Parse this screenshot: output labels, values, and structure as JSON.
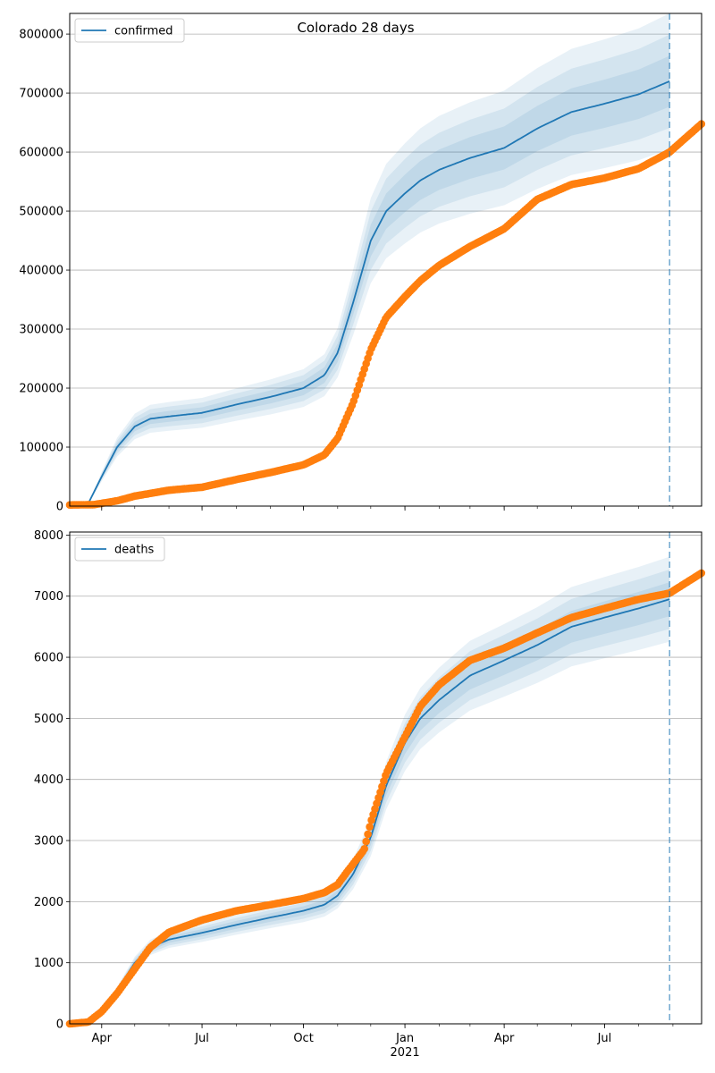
{
  "figure": {
    "title": "Colorado 28 days",
    "colors": {
      "model": "#1f77b4",
      "observed": "#ff7f0e",
      "band": "#1f77b4",
      "grid": "#b0b0b0"
    },
    "xaxis": {
      "ticks": [
        {
          "date": "2020-04-01",
          "label": "Apr"
        },
        {
          "date": "2020-07-01",
          "label": "Jul"
        },
        {
          "date": "2020-10-01",
          "label": "Oct"
        },
        {
          "date": "2021-01-01",
          "label": "Jan"
        },
        {
          "date": "2021-04-01",
          "label": "Apr"
        },
        {
          "date": "2021-07-01",
          "label": "Jul"
        }
      ],
      "year_label": "2021",
      "range": [
        "2020-03-03",
        "2021-09-27"
      ],
      "forecast_line_date": "2021-08-29"
    }
  },
  "chart_data": [
    {
      "type": "line",
      "legend": "confirmed",
      "legend_placement": "top-left",
      "grid": "horizontal",
      "ylim": [
        0,
        835000
      ],
      "yticks": [
        0,
        100000,
        200000,
        300000,
        400000,
        500000,
        600000,
        700000,
        800000
      ],
      "model_series": {
        "name": "confirmed",
        "x": [
          "2020-03-12",
          "2020-03-20",
          "2020-04-01",
          "2020-04-15",
          "2020-05-01",
          "2020-05-15",
          "2020-06-01",
          "2020-07-01",
          "2020-08-01",
          "2020-09-01",
          "2020-10-01",
          "2020-10-20",
          "2020-11-01",
          "2020-11-15",
          "2020-12-01",
          "2020-12-15",
          "2021-01-01",
          "2021-01-15",
          "2021-02-01",
          "2021-03-01",
          "2021-04-01",
          "2021-05-01",
          "2021-06-01",
          "2021-07-01",
          "2021-08-01",
          "2021-08-29"
        ],
        "y": [
          0,
          5000,
          50000,
          100000,
          135000,
          148000,
          152000,
          158000,
          172000,
          185000,
          200000,
          222000,
          260000,
          345000,
          450000,
          500000,
          530000,
          552000,
          570000,
          590000,
          607000,
          640000,
          668000,
          682000,
          698000,
          720000
        ],
        "band_fractions": [
          0.06,
          0.11,
          0.16
        ]
      },
      "observed": {
        "x": [
          "2020-03-03",
          "2020-03-25",
          "2020-04-15",
          "2020-05-01",
          "2020-06-01",
          "2020-07-01",
          "2020-08-01",
          "2020-09-01",
          "2020-10-01",
          "2020-10-20",
          "2020-11-01",
          "2020-11-15",
          "2020-12-01",
          "2020-12-15",
          "2021-01-01",
          "2021-01-15",
          "2021-02-01",
          "2021-03-01",
          "2021-04-01",
          "2021-05-01",
          "2021-06-01",
          "2021-07-01",
          "2021-08-01",
          "2021-08-29",
          "2021-09-27"
        ],
        "y": [
          2000,
          2500,
          9000,
          17000,
          27000,
          32000,
          45000,
          57000,
          70000,
          87000,
          115000,
          175000,
          265000,
          320000,
          355000,
          382000,
          408000,
          440000,
          470000,
          520000,
          545000,
          556000,
          572000,
          600000,
          648000
        ]
      }
    },
    {
      "type": "line",
      "legend": "deaths",
      "legend_placement": "top-left",
      "grid": "horizontal",
      "ylim": [
        0,
        8050
      ],
      "yticks": [
        0,
        1000,
        2000,
        3000,
        4000,
        5000,
        6000,
        7000,
        8000
      ],
      "model_series": {
        "name": "deaths",
        "x": [
          "2020-03-03",
          "2020-03-20",
          "2020-04-01",
          "2020-04-15",
          "2020-05-01",
          "2020-05-15",
          "2020-06-01",
          "2020-07-01",
          "2020-08-01",
          "2020-09-01",
          "2020-10-01",
          "2020-10-20",
          "2020-11-01",
          "2020-11-15",
          "2020-12-01",
          "2020-12-15",
          "2021-01-01",
          "2021-01-15",
          "2021-02-01",
          "2021-03-01",
          "2021-04-01",
          "2021-05-01",
          "2021-06-01",
          "2021-07-01",
          "2021-08-01",
          "2021-08-29"
        ],
        "y": [
          0,
          20,
          150,
          550,
          1000,
          1250,
          1380,
          1490,
          1620,
          1740,
          1850,
          1950,
          2100,
          2450,
          3050,
          3900,
          4600,
          5000,
          5300,
          5700,
          5950,
          6200,
          6500,
          6650,
          6800,
          6950
        ],
        "band_fractions": [
          0.04,
          0.07,
          0.1
        ]
      },
      "observed": {
        "x": [
          "2020-03-03",
          "2020-03-20",
          "2020-04-01",
          "2020-04-15",
          "2020-05-01",
          "2020-05-15",
          "2020-06-01",
          "2020-07-01",
          "2020-08-01",
          "2020-09-01",
          "2020-10-01",
          "2020-10-20",
          "2020-11-01",
          "2020-11-10",
          "2020-11-25",
          "2020-12-01",
          "2020-12-15",
          "2021-01-01",
          "2021-01-15",
          "2021-02-01",
          "2021-03-01",
          "2021-04-01",
          "2021-05-01",
          "2021-06-01",
          "2021-07-01",
          "2021-08-01",
          "2021-08-29",
          "2021-09-27"
        ],
        "y": [
          0,
          30,
          200,
          500,
          900,
          1250,
          1500,
          1700,
          1850,
          1950,
          2050,
          2150,
          2280,
          2500,
          2850,
          3300,
          4100,
          4700,
          5200,
          5550,
          5950,
          6150,
          6400,
          6650,
          6800,
          6950,
          7050,
          7380
        ]
      }
    }
  ]
}
